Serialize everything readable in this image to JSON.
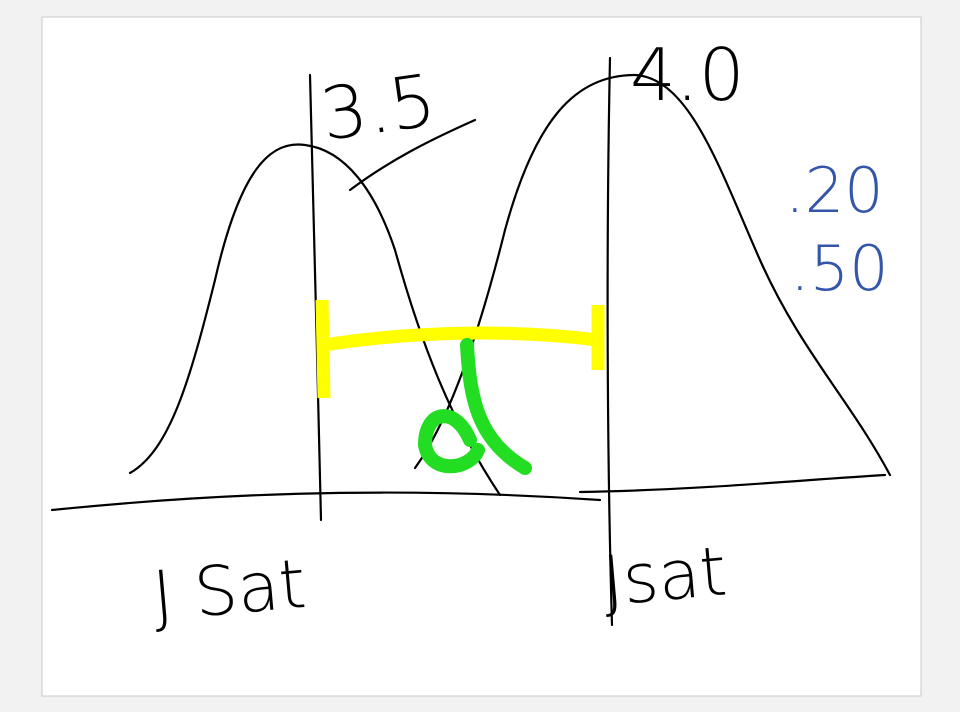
{
  "annotations": {
    "left_mean": "3.5",
    "right_mean": "4.0",
    "values": [
      ".20",
      ".50"
    ],
    "distance_symbol": "d",
    "left_label": "J Sat",
    "right_label": "Jsat"
  }
}
